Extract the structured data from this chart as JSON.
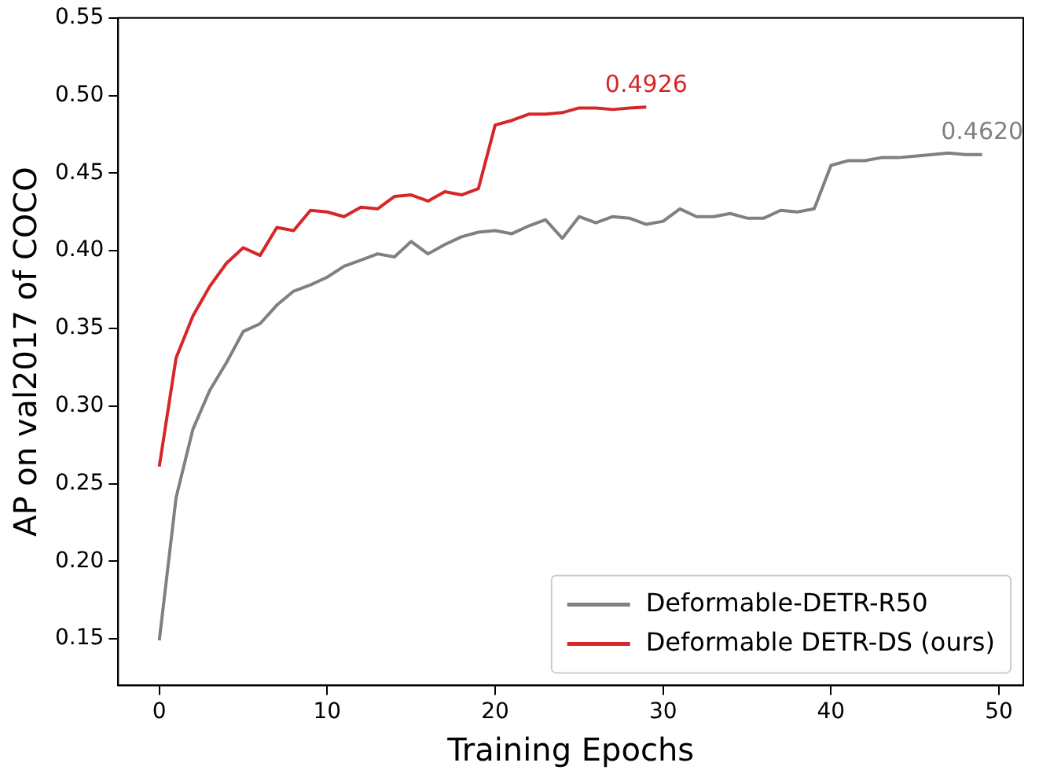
{
  "chart_data": {
    "type": "line",
    "xlabel": "Training Epochs",
    "ylabel": "AP on val2017 of COCO",
    "xlim": [
      -2.45,
      51.45
    ],
    "xticks": [
      0,
      10,
      20,
      30,
      40,
      50
    ],
    "ylim": [
      0.12,
      0.55
    ],
    "yticks": [
      0.15,
      {
        "value": 0.2,
        "label": "0.20"
      },
      0.25,
      {
        "value": 0.3,
        "label": "0.30"
      },
      0.35,
      {
        "value": 0.4,
        "label": "0.40"
      },
      0.45,
      {
        "value": 0.5,
        "label": "0.50"
      },
      0.55
    ],
    "grid": false,
    "legend": "bottom right",
    "marker": "none",
    "line_style": "solid",
    "series": [
      {
        "name": "Deformable-DETR-R50",
        "color": "#808080",
        "x": [
          0,
          1,
          2,
          3,
          4,
          5,
          6,
          7,
          8,
          9,
          10,
          11,
          12,
          13,
          14,
          15,
          16,
          17,
          18,
          19,
          20,
          21,
          22,
          23,
          24,
          25,
          26,
          27,
          28,
          29,
          30,
          31,
          32,
          33,
          34,
          35,
          36,
          37,
          38,
          39,
          40,
          41,
          42,
          43,
          44,
          45,
          46,
          47,
          48,
          49
        ],
        "values": [
          0.149,
          0.241,
          0.285,
          0.31,
          0.328,
          0.348,
          0.353,
          0.365,
          0.374,
          0.378,
          0.383,
          0.39,
          0.394,
          0.398,
          0.396,
          0.406,
          0.398,
          0.404,
          0.409,
          0.412,
          0.413,
          0.411,
          0.416,
          0.42,
          0.408,
          0.422,
          0.418,
          0.422,
          0.421,
          0.417,
          0.419,
          0.427,
          0.422,
          0.422,
          0.424,
          0.421,
          0.421,
          0.426,
          0.425,
          0.427,
          0.455,
          0.458,
          0.458,
          0.46,
          0.46,
          0.461,
          0.462,
          0.463,
          0.462,
          0.462
        ]
      },
      {
        "name": "Deformable DETR-DS (ours)",
        "color": "#d62728",
        "x": [
          0,
          1,
          2,
          3,
          4,
          5,
          6,
          7,
          8,
          9,
          10,
          11,
          12,
          13,
          14,
          15,
          16,
          17,
          18,
          19,
          20,
          21,
          22,
          23,
          24,
          25,
          26,
          27,
          28,
          29
        ],
        "values": [
          0.261,
          0.331,
          0.358,
          0.377,
          0.392,
          0.402,
          0.397,
          0.415,
          0.413,
          0.426,
          0.425,
          0.422,
          0.428,
          0.427,
          0.435,
          0.436,
          0.432,
          0.438,
          0.436,
          0.44,
          0.481,
          0.484,
          0.488,
          0.488,
          0.489,
          0.492,
          0.492,
          0.491,
          0.492,
          0.4926
        ]
      }
    ],
    "annotations": [
      {
        "text": "0.4926",
        "x": 29,
        "y": 0.4926
      },
      {
        "text": "0.4620",
        "x": 49,
        "y": 0.462
      }
    ]
  }
}
